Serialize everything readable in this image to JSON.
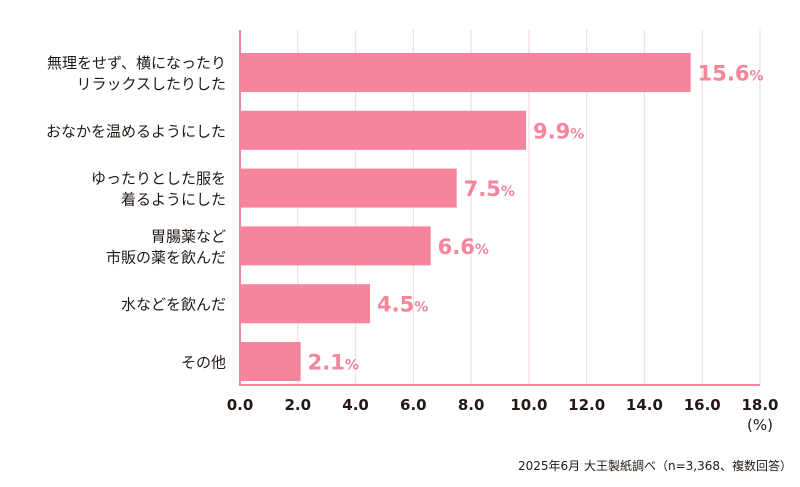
{
  "chart_data": {
    "type": "bar",
    "orientation": "horizontal",
    "categories": [
      [
        "無理をせず、横になったり",
        "リラックスしたりした"
      ],
      [
        "おなかを温めるようにした"
      ],
      [
        "ゆったりとした服を",
        "着るようにした"
      ],
      [
        "胃腸薬など",
        "市販の薬を飲んだ"
      ],
      [
        "水などを飲んだ"
      ],
      [
        "その他"
      ]
    ],
    "values": [
      15.6,
      9.9,
      7.5,
      6.6,
      4.5,
      2.1
    ],
    "value_labels": [
      "15.6",
      "9.9",
      "7.5",
      "6.6",
      "4.5",
      "2.1"
    ],
    "value_unit": "%",
    "xlim": [
      0,
      18
    ],
    "xticks": [
      "0.0",
      "2.0",
      "4.0",
      "6.0",
      "8.0",
      "10.0",
      "12.0",
      "14.0",
      "16.0",
      "18.0"
    ],
    "xlabel": "(%)",
    "grid": true,
    "bar_color": "#f5849c",
    "grid_color": "#f1dde4",
    "axis_color": "#f5849c"
  },
  "footnote": "2025年6月 大王製紙調べ（n=3,368、複数回答）"
}
